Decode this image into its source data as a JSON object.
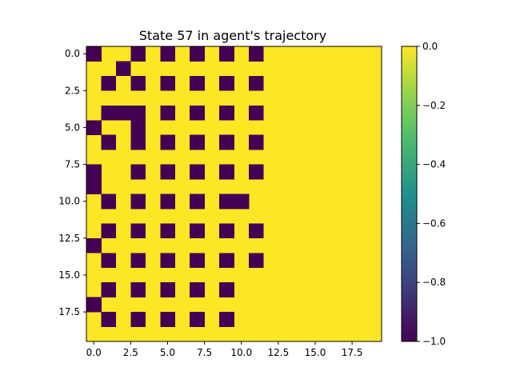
{
  "chart_data": {
    "type": "heatmap",
    "title": "State 57 in agent's trajectory",
    "xlabel": "",
    "ylabel": "",
    "rows": 20,
    "cols": 20,
    "xlim": [
      -0.5,
      19.5
    ],
    "ylim": [
      19.5,
      -0.5
    ],
    "x_ticks": [
      0.0,
      2.5,
      5.0,
      7.5,
      10.0,
      12.5,
      15.0,
      17.5
    ],
    "x_tick_labels": [
      "0.0",
      "2.5",
      "5.0",
      "7.5",
      "10.0",
      "12.5",
      "15.0",
      "17.5"
    ],
    "y_ticks": [
      0.0,
      2.5,
      5.0,
      7.5,
      10.0,
      12.5,
      15.0,
      17.5
    ],
    "y_tick_labels": [
      "0.0",
      "2.5",
      "5.0",
      "7.5",
      "10.0",
      "12.5",
      "15.0",
      "17.5"
    ],
    "colorbar": {
      "min": -1.0,
      "max": 0.0,
      "ticks": [
        0.0,
        -0.2,
        -0.4,
        -0.6,
        -0.8,
        -1.0
      ],
      "tick_labels": [
        "0.0",
        "−0.2",
        "−0.4",
        "−0.6",
        "−0.8",
        "−1.0"
      ],
      "colormap": "viridis"
    },
    "default_value": 0.0,
    "low_cells_value": -1.0,
    "low_cells": [
      [
        0,
        0
      ],
      [
        0,
        3
      ],
      [
        0,
        5
      ],
      [
        0,
        7
      ],
      [
        0,
        9
      ],
      [
        0,
        11
      ],
      [
        1,
        2
      ],
      [
        2,
        1
      ],
      [
        2,
        3
      ],
      [
        2,
        5
      ],
      [
        2,
        7
      ],
      [
        2,
        9
      ],
      [
        2,
        11
      ],
      [
        4,
        1
      ],
      [
        4,
        2
      ],
      [
        4,
        3
      ],
      [
        4,
        5
      ],
      [
        4,
        7
      ],
      [
        4,
        9
      ],
      [
        4,
        11
      ],
      [
        5,
        0
      ],
      [
        5,
        3
      ],
      [
        6,
        1
      ],
      [
        6,
        3
      ],
      [
        6,
        5
      ],
      [
        6,
        7
      ],
      [
        6,
        9
      ],
      [
        6,
        11
      ],
      [
        8,
        0
      ],
      [
        8,
        3
      ],
      [
        8,
        5
      ],
      [
        8,
        7
      ],
      [
        8,
        9
      ],
      [
        8,
        11
      ],
      [
        9,
        0
      ],
      [
        10,
        1
      ],
      [
        10,
        3
      ],
      [
        10,
        5
      ],
      [
        10,
        7
      ],
      [
        10,
        9
      ],
      [
        10,
        10
      ],
      [
        12,
        1
      ],
      [
        12,
        3
      ],
      [
        12,
        5
      ],
      [
        12,
        7
      ],
      [
        12,
        9
      ],
      [
        12,
        11
      ],
      [
        13,
        0
      ],
      [
        14,
        1
      ],
      [
        14,
        3
      ],
      [
        14,
        5
      ],
      [
        14,
        7
      ],
      [
        14,
        9
      ],
      [
        14,
        11
      ],
      [
        16,
        1
      ],
      [
        16,
        3
      ],
      [
        16,
        5
      ],
      [
        16,
        7
      ],
      [
        16,
        9
      ],
      [
        17,
        0
      ],
      [
        18,
        1
      ],
      [
        18,
        3
      ],
      [
        18,
        5
      ],
      [
        18,
        7
      ],
      [
        18,
        9
      ]
    ]
  }
}
